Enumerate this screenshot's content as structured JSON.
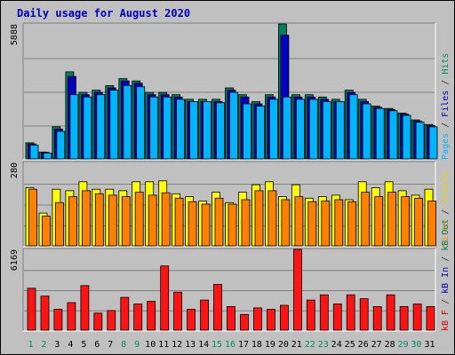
{
  "chart_data": {
    "type": "bar",
    "title": "Daily usage for August 2020",
    "categories": [
      "1",
      "2",
      "3",
      "4",
      "5",
      "6",
      "7",
      "8",
      "9",
      "10",
      "11",
      "12",
      "13",
      "14",
      "15",
      "16",
      "17",
      "18",
      "19",
      "20",
      "21",
      "22",
      "23",
      "24",
      "25",
      "26",
      "27",
      "28",
      "29",
      "30",
      "31"
    ],
    "weekend_days": [
      "1",
      "2",
      "8",
      "9",
      "15",
      "16",
      "22",
      "23",
      "29",
      "30"
    ],
    "panels": [
      {
        "id": "top",
        "ymax_label": "5888",
        "ymax": 5888,
        "right_label": [
          {
            "text": "Pages",
            "color": "#00b4ff"
          },
          {
            "text": " / ",
            "color": "#303030"
          },
          {
            "text": "Files",
            "color": "#0000c0"
          },
          {
            "text": " / ",
            "color": "#303030"
          },
          {
            "text": "Hits",
            "color": "#008a60"
          }
        ],
        "series": [
          {
            "name": "Hits",
            "color": "#00805c",
            "values": [
              700,
              300,
              1400,
              3800,
              2900,
              3000,
              3200,
              3500,
              3400,
              2900,
              2900,
              2800,
              2600,
              2600,
              2600,
              3100,
              2800,
              2500,
              2800,
              5888,
              2800,
              2800,
              2700,
              2600,
              3000,
              2600,
              2300,
              2200,
              2000,
              1700,
              1500
            ]
          },
          {
            "name": "Files",
            "color": "#0000c0",
            "values": [
              650,
              280,
              1300,
              3600,
              2800,
              2900,
              3100,
              3400,
              3300,
              2800,
              2800,
              2700,
              2500,
              2500,
              2500,
              3000,
              2700,
              2400,
              2700,
              5400,
              2700,
              2700,
              2600,
              2500,
              2900,
              2500,
              2250,
              2150,
              1950,
              1650,
              1450
            ]
          },
          {
            "name": "Pages",
            "color": "#00b4ff",
            "values": [
              600,
              250,
              1200,
              2800,
              2700,
              2800,
              3000,
              3200,
              3150,
              2700,
              2700,
              2600,
              2500,
              2500,
              2450,
              2900,
              2400,
              2300,
              2600,
              2700,
              2600,
              2600,
              2500,
              2500,
              2800,
              2400,
              2200,
              2100,
              1900,
              1600,
              1400
            ]
          }
        ]
      },
      {
        "id": "middle",
        "ymax_label": "280",
        "ymax": 280,
        "right_label": [
          {
            "text": "Sites",
            "color": "#ff8000"
          },
          {
            "text": " / ",
            "color": "#303030"
          },
          {
            "text": "Visits",
            "color": "#e8d000"
          }
        ],
        "series": [
          {
            "name": "Visits",
            "color": "#ffff00",
            "values": [
              195,
              110,
              190,
              185,
              215,
              190,
              190,
              185,
              215,
              215,
              218,
              175,
              165,
              150,
              180,
              145,
              180,
              205,
              215,
              165,
              205,
              160,
              165,
              170,
              155,
              215,
              195,
              215,
              185,
              170,
              190
            ]
          },
          {
            "name": "Sites",
            "color": "#ff8000",
            "values": [
              190,
              100,
              145,
              165,
              185,
              175,
              170,
              165,
              180,
              170,
              178,
              160,
              148,
              140,
              160,
              140,
              155,
              185,
              185,
              155,
              165,
              148,
              150,
              155,
              148,
              180,
              165,
              180,
              165,
              160,
              150
            ]
          }
        ]
      },
      {
        "id": "bottom",
        "ymax_label": "6169",
        "ymax": 6169,
        "right_label": [
          {
            "text": "kB F",
            "color": "#e00000"
          },
          {
            "text": " / ",
            "color": "#303030"
          },
          {
            "text": "kB In",
            "color": "#0000c0"
          },
          {
            "text": " / ",
            "color": "#303030"
          },
          {
            "text": "kB Out",
            "color": "#008a60"
          }
        ],
        "series": [
          {
            "name": "kB F",
            "color": "#ff1414",
            "values": [
              3200,
              2600,
              1600,
              2100,
              3400,
              1300,
              1500,
              2500,
              2000,
              2200,
              4900,
              2900,
              1600,
              2300,
              3500,
              1800,
              1200,
              1700,
              1600,
              1900,
              6169,
              2300,
              2700,
              2000,
              2700,
              2400,
              1800,
              2700,
              1800,
              2000,
              1800
            ]
          }
        ]
      }
    ]
  }
}
